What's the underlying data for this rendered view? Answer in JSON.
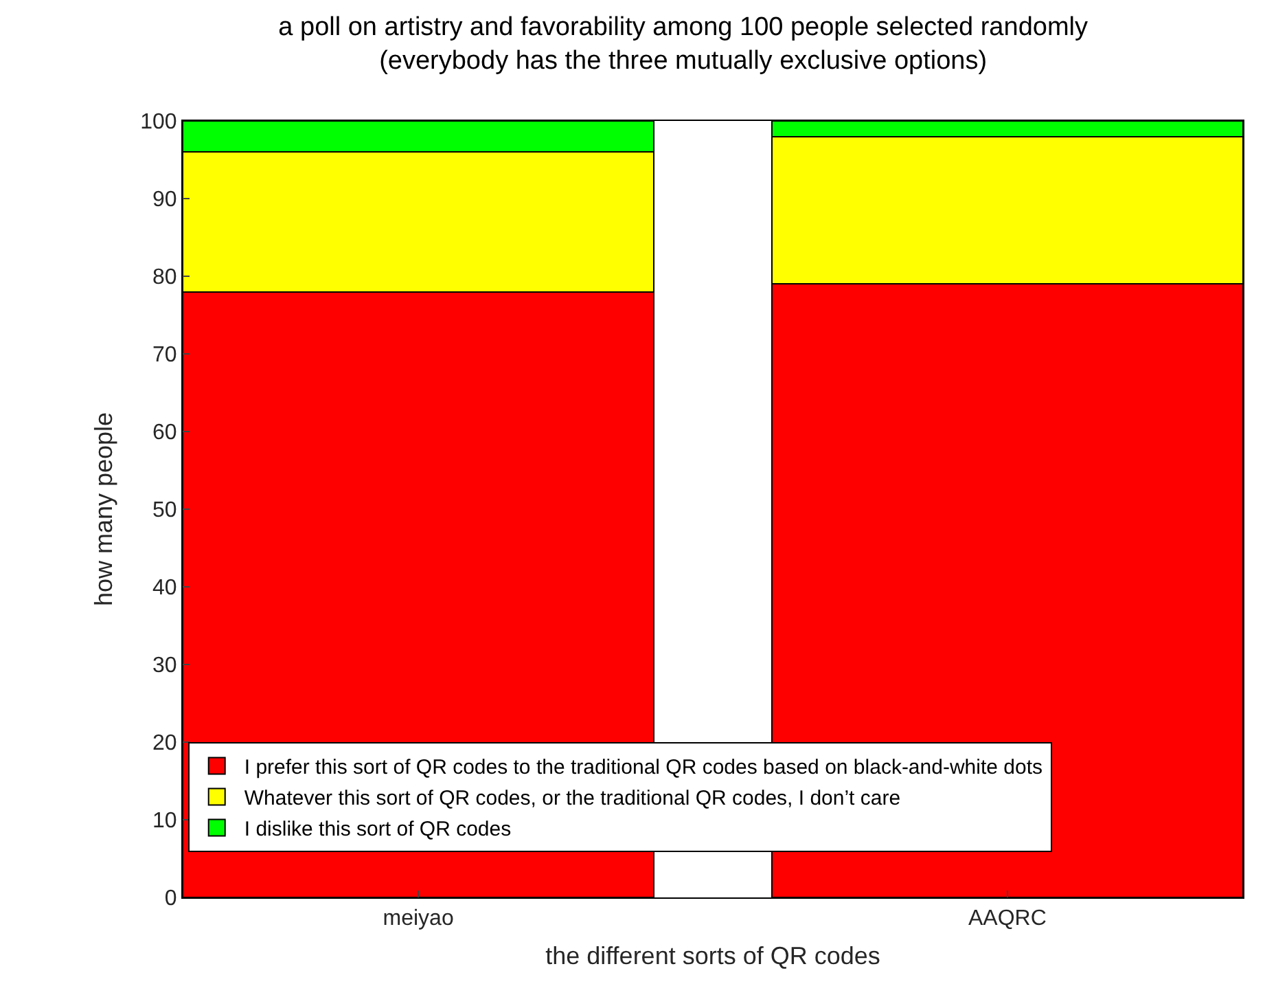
{
  "chart_data": {
    "type": "bar",
    "title": "a poll on artistry and favorability among 100 people selected randomly\n(everybody has the three mutually exclusive options)",
    "xlabel": "the different sorts of QR codes",
    "ylabel": "how many people",
    "categories": [
      "meiyao",
      "AAQRC"
    ],
    "stacked": true,
    "series": [
      {
        "name": "I prefer this sort of QR codes to the traditional QR codes based on black-and-white dots",
        "color": "#ff0000",
        "values": [
          78,
          79
        ]
      },
      {
        "name": "Whatever this sort of QR codes, or the traditional QR codes, I don’t care",
        "color": "#ffff00",
        "values": [
          18,
          19
        ]
      },
      {
        "name": "I dislike this sort of QR codes",
        "color": "#00ff00",
        "values": [
          4,
          2
        ]
      }
    ],
    "ylim": [
      0,
      100
    ],
    "yticks": [
      0,
      10,
      20,
      30,
      40,
      50,
      60,
      70,
      80,
      90,
      100
    ],
    "grid": false,
    "legend": "bottom left"
  }
}
